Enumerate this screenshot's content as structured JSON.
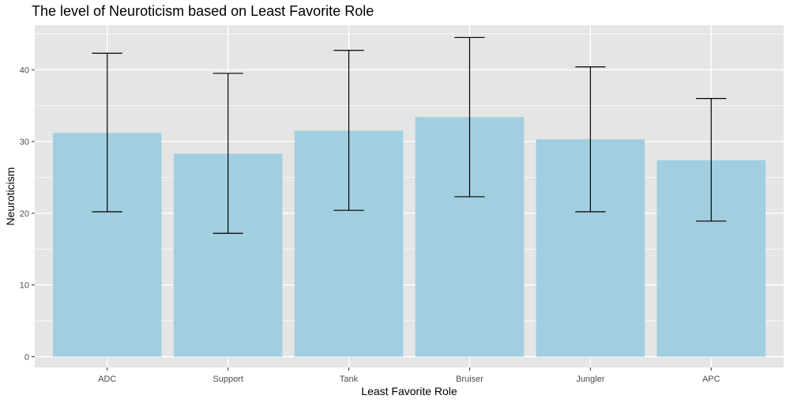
{
  "chart_data": {
    "type": "bar",
    "title": "The level of Neuroticism based on Least Favorite Role",
    "xlabel": "Least Favorite Role",
    "ylabel": "Neuroticism",
    "categories": [
      "ADC",
      "Support",
      "Tank",
      "Bruiser",
      "Jungler",
      "APC"
    ],
    "values": [
      31.2,
      28.3,
      31.5,
      33.4,
      30.3,
      27.4
    ],
    "error_low": [
      20.2,
      17.2,
      20.4,
      22.3,
      20.2,
      18.9
    ],
    "error_high": [
      42.3,
      39.5,
      42.7,
      44.5,
      40.4,
      36.0
    ],
    "yticks": [
      0,
      10,
      20,
      30,
      40
    ],
    "ylim": [
      -1.5,
      46.2
    ],
    "grid": true,
    "bar_color": "#a1cfe0",
    "panel_color": "#e5e5e5",
    "gridline_color": "#ffffff",
    "errorbar_color": "#000000"
  }
}
